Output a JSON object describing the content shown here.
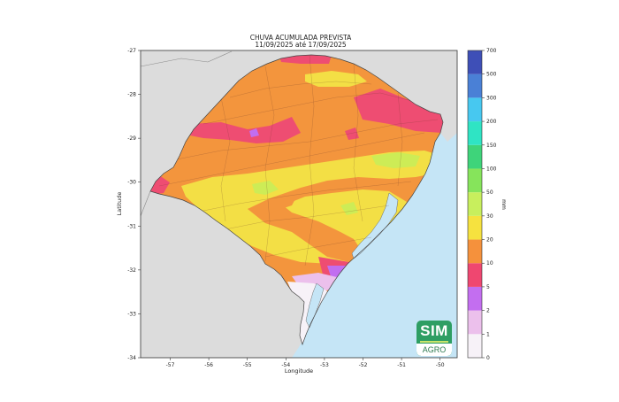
{
  "title": "CHUVA ACUMULADA PREVISTA",
  "subtitle": "11/09/2025 até 17/09/2025",
  "axes": {
    "xlabel": "Longitude",
    "ylabel": "Latitude",
    "xticks": [
      "-57",
      "-56",
      "-55",
      "-54",
      "-53",
      "-52",
      "-51",
      "-50"
    ],
    "yticks": [
      "-27",
      "-28",
      "-29",
      "-30",
      "-31",
      "-32",
      "-33",
      "-34"
    ]
  },
  "colorbar": {
    "unit": "mm",
    "levels": [
      "0",
      "1",
      "2",
      "5",
      "10",
      "20",
      "30",
      "50",
      "100",
      "150",
      "200",
      "300",
      "500",
      "700"
    ],
    "colors": [
      "#f7f2f8",
      "#ecc0ec",
      "#c36ef0",
      "#ef4770",
      "#f5913c",
      "#f6e23f",
      "#c8ef5d",
      "#86e45b",
      "#3ed47a",
      "#2fe4c4",
      "#47c8f0",
      "#4a80d6",
      "#3e4fb7"
    ]
  },
  "map_colors": {
    "ocean": "#c5e5f6",
    "neighbors": "#dcdcdc",
    "orange": "#f3953d",
    "red": "#ee4d72",
    "yellow": "#f3df45",
    "lime": "#cdec56",
    "purple": "#c16ef0",
    "lightpurple": "#ecc0ec",
    "white": "#f7f2f8"
  },
  "logo": {
    "line1": "SIM",
    "line2": "AGRO"
  }
}
